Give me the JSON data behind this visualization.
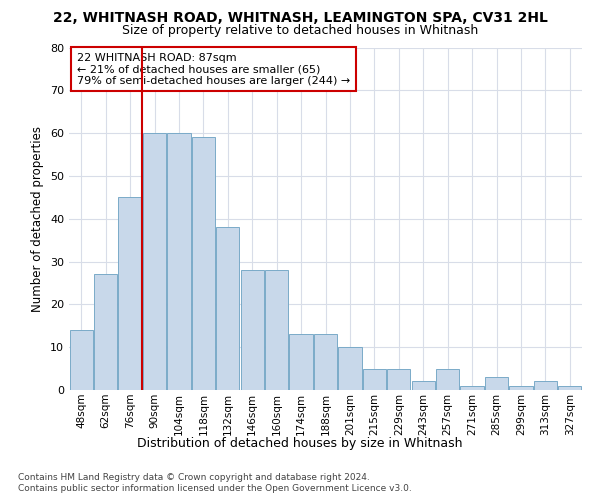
{
  "title1": "22, WHITNASH ROAD, WHITNASH, LEAMINGTON SPA, CV31 2HL",
  "title2": "Size of property relative to detached houses in Whitnash",
  "xlabel": "Distribution of detached houses by size in Whitnash",
  "ylabel": "Number of detached properties",
  "footer1": "Contains HM Land Registry data © Crown copyright and database right 2024.",
  "footer2": "Contains public sector information licensed under the Open Government Licence v3.0.",
  "bar_labels": [
    "48sqm",
    "62sqm",
    "76sqm",
    "90sqm",
    "104sqm",
    "118sqm",
    "132sqm",
    "146sqm",
    "160sqm",
    "174sqm",
    "188sqm",
    "201sqm",
    "215sqm",
    "229sqm",
    "243sqm",
    "257sqm",
    "271sqm",
    "285sqm",
    "299sqm",
    "313sqm",
    "327sqm"
  ],
  "bar_values": [
    14,
    27,
    45,
    60,
    60,
    59,
    38,
    28,
    28,
    13,
    13,
    10,
    5,
    5,
    2,
    5,
    0,
    1,
    0,
    3,
    0,
    1,
    0,
    2,
    0,
    1
  ],
  "bar_values_21": [
    14,
    27,
    45,
    60,
    60,
    59,
    38,
    28,
    28,
    13,
    13,
    10,
    5,
    5,
    2,
    5,
    1,
    3,
    1,
    2,
    1
  ],
  "bar_color": "#c8d8ea",
  "bar_edge_color": "#7aaac8",
  "annotation_box_edge_color": "#cc0000",
  "property_line_color": "#cc0000",
  "annotation_text_line1": "22 WHITNASH ROAD: 87sqm",
  "annotation_text_line2": "← 21% of detached houses are smaller (65)",
  "annotation_text_line3": "79% of semi-detached houses are larger (244) →",
  "ylim": [
    0,
    80
  ],
  "yticks": [
    0,
    10,
    20,
    30,
    40,
    50,
    60,
    70,
    80
  ],
  "bg_color": "#ffffff",
  "plot_bg_color": "#ffffff",
  "grid_color": "#d8dde8",
  "title1_fontsize": 10,
  "title2_fontsize": 9
}
